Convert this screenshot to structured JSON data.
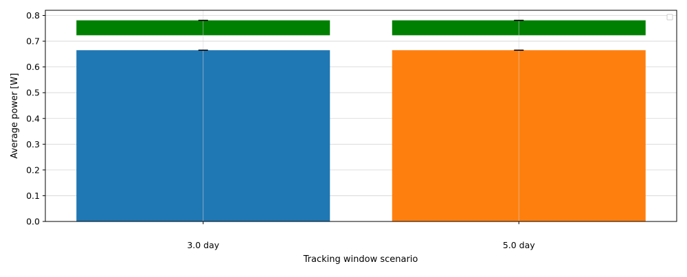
{
  "chart_data": {
    "type": "bar",
    "categories": [
      "3.0 day",
      "5.0 day"
    ],
    "values": [
      0.665,
      0.665
    ],
    "error_tops": [
      0.665,
      0.665
    ],
    "upper_bars": [
      {
        "bottom": 0.723,
        "top": 0.781
      },
      {
        "bottom": 0.723,
        "top": 0.781
      }
    ],
    "upper_error_tops": [
      0.781,
      0.781
    ],
    "xlabel": "Tracking window scenario",
    "ylabel": "Average power [W]",
    "ylim": [
      0,
      0.82
    ],
    "yticks": [
      "0.0",
      "0.1",
      "0.2",
      "0.3",
      "0.4",
      "0.5",
      "0.6",
      "0.7",
      "0.8"
    ],
    "grid": true,
    "legend": {
      "placement": "top-right",
      "entries": []
    },
    "colors": {
      "bars": [
        "#1f77b4",
        "#ff7f0e"
      ],
      "upper": "#008000",
      "grid": "#d3d3d3",
      "error": "#000000"
    }
  }
}
